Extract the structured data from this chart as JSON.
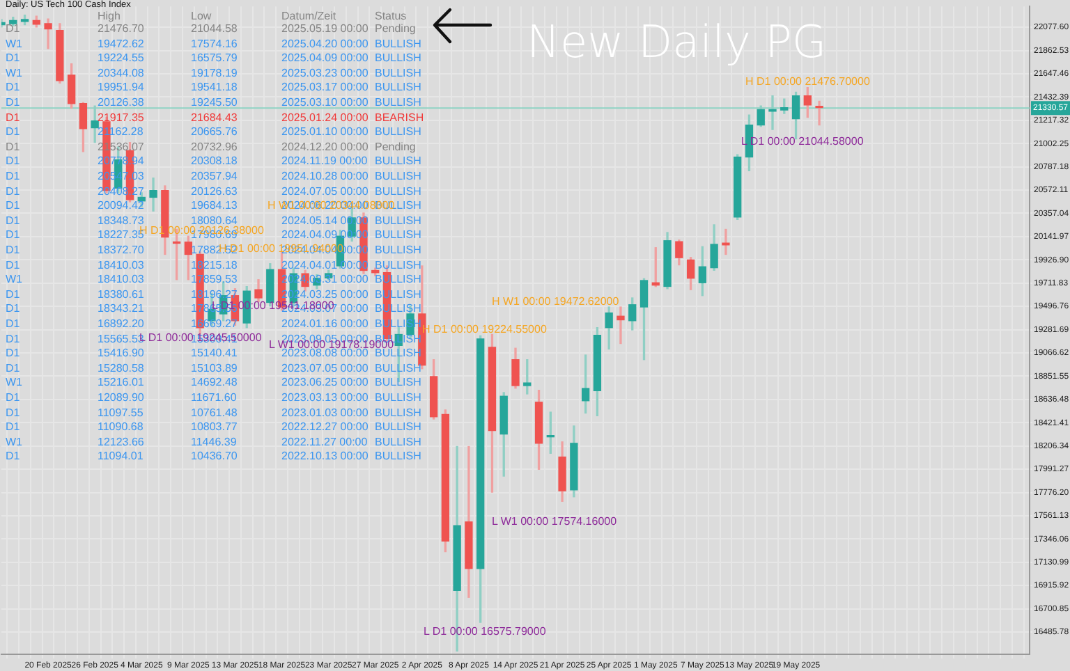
{
  "chart_data": {
    "type": "candlestick",
    "title": "Daily: US Tech 100 Cash Index",
    "categories": [
      null,
      null,
      null,
      null,
      "20 Feb 2025",
      null,
      null,
      null,
      "26 Feb 2025",
      null,
      null,
      null,
      "4 Mar 2025",
      null,
      null,
      null,
      "9 Mar 2025",
      null,
      null,
      null,
      "13 Mar 2025",
      null,
      null,
      null,
      "18 Mar 2025",
      null,
      null,
      null,
      "23 Mar 2025",
      null,
      null,
      null,
      "27 Mar 2025",
      null,
      null,
      null,
      "2 Apr 2025",
      null,
      null,
      null,
      "8 Apr 2025",
      null,
      null,
      null,
      "14 Apr 2025",
      null,
      null,
      null,
      "21 Apr 2025",
      null,
      null,
      null,
      "25 Apr 2025",
      null,
      null,
      null,
      "1 May 2025",
      null,
      null,
      null,
      "7 May 2025",
      null,
      null,
      null,
      "13 May 2025",
      null,
      null,
      null,
      "19 May 2025",
      null,
      null,
      null,
      null,
      null,
      null,
      null,
      null,
      null,
      null,
      null,
      null,
      null,
      null,
      null,
      null,
      null,
      null,
      null,
      null
    ],
    "ohlc": [
      [
        22100,
        22150,
        22080,
        22120
      ],
      [
        22110,
        22170,
        22090,
        22140
      ],
      [
        22130,
        22190,
        22100,
        22150
      ],
      [
        22140,
        22180,
        22080,
        22105
      ],
      [
        22111,
        22154,
        21879,
        22061
      ],
      [
        22048,
        22111,
        21562,
        21583
      ],
      [
        21634,
        21739,
        21329,
        21372
      ],
      [
        21372,
        21380,
        20928,
        21139
      ],
      [
        21148,
        21350,
        21012,
        21211
      ],
      [
        21203,
        21245,
        20547,
        20568
      ],
      [
        20590,
        20970,
        20547,
        20852
      ],
      [
        20936,
        21012,
        20463,
        20484
      ],
      [
        20471,
        20547,
        20421,
        20505
      ],
      [
        20505,
        20683,
        20378,
        20568
      ],
      [
        20568,
        20611,
        19977,
        20137
      ],
      [
        20091,
        20209,
        19744,
        20080
      ],
      [
        20091,
        20146,
        19744,
        19977
      ],
      [
        19977,
        20000,
        19245.5,
        19300
      ],
      [
        19364,
        19617,
        19322,
        19469
      ],
      [
        19427,
        19723,
        19364,
        19596
      ],
      [
        19596,
        19660,
        19322,
        19364
      ],
      [
        19343,
        19680,
        19300,
        19638
      ],
      [
        19651,
        19744,
        19541.18,
        19575
      ],
      [
        19533,
        19892,
        19500,
        19837
      ],
      [
        19837,
        19998,
        19460,
        19491
      ],
      [
        19533,
        19850,
        19500,
        19799
      ],
      [
        19799,
        19830,
        19640,
        19681
      ],
      [
        19693,
        19790,
        19660,
        19757
      ],
      [
        19760,
        19830,
        19740,
        19800
      ],
      [
        19871,
        20200,
        19850,
        20146
      ],
      [
        20146,
        20420,
        20100,
        20315
      ],
      [
        20315,
        20360,
        19800,
        19829
      ],
      [
        19829,
        19850,
        19780,
        19808
      ],
      [
        19808,
        19871,
        19180,
        19199
      ],
      [
        19135,
        19300,
        18800,
        19237
      ],
      [
        19237,
        19500,
        19200,
        19427
      ],
      [
        19427,
        19871,
        18920,
        18953
      ],
      [
        18848,
        19004,
        18455,
        18476
      ],
      [
        18497,
        18539,
        17229,
        17326
      ],
      [
        16870,
        18201,
        16310,
        17470
      ],
      [
        17504,
        18201,
        16806,
        17073
      ],
      [
        17073,
        19224.55,
        16575.79,
        19195
      ],
      [
        19119,
        19237,
        17779,
        18349
      ],
      [
        18316,
        18700,
        17927,
        18666
      ],
      [
        19004,
        19110,
        18740,
        18764
      ],
      [
        18764,
        19004,
        18687,
        18789
      ],
      [
        18611,
        18721,
        17990,
        18231
      ],
      [
        18290,
        18519,
        18138,
        18300
      ],
      [
        18104,
        18244,
        17694,
        17791
      ],
      [
        17800,
        18391,
        17736,
        18231
      ],
      [
        18624,
        19047,
        18510,
        18738
      ],
      [
        18717,
        19300,
        18485,
        19229
      ],
      [
        19300,
        19491,
        19102,
        19436
      ],
      [
        19406,
        19491,
        19153,
        19372
      ],
      [
        19364,
        19575,
        19279,
        19512
      ],
      [
        19491,
        19753,
        19004,
        19736
      ],
      [
        19715,
        20040,
        19680,
        19693
      ],
      [
        19681,
        20180,
        19660,
        20104
      ],
      [
        20095,
        20110,
        19880,
        19947
      ],
      [
        19926,
        19950,
        19651,
        19757
      ],
      [
        19715,
        20049,
        19596,
        19863
      ],
      [
        19854,
        20251,
        19830,
        20070
      ],
      [
        20082,
        20209,
        19977,
        20065
      ],
      [
        20323,
        20900,
        20300,
        20877
      ],
      [
        20877,
        21266,
        20750,
        21173
      ],
      [
        21173,
        21350,
        21160,
        21317
      ],
      [
        21300,
        21444,
        21131,
        21317
      ],
      [
        21312,
        21414,
        21280,
        21334
      ],
      [
        21232,
        21476.7,
        21044.58,
        21444
      ],
      [
        21444,
        21520,
        21245,
        21359
      ],
      [
        21342,
        21393,
        21173,
        21334
      ],
      null,
      null,
      null,
      null,
      null,
      null,
      null,
      null,
      null,
      null,
      null,
      null,
      null,
      null,
      null,
      null,
      null,
      null
    ],
    "ylim": [
      16280,
      22270
    ],
    "yticks": [
      16485.78,
      16700.85,
      16915.92,
      17130.99,
      17346.06,
      17561.13,
      {
        "value": 17776.2,
        "label": "17776.20"
      },
      17991.27,
      18206.34,
      18421.41,
      18636.48,
      18851.55,
      19066.62,
      19281.69,
      19496.76,
      19711.83,
      {
        "value": 19926.9,
        "label": "19926.90"
      },
      20141.97,
      20357.04,
      20572.11,
      20787.18,
      21002.25,
      21217.32,
      21432.39,
      21647.46,
      21862.53,
      {
        "value": 22077.6,
        "label": "22077.60"
      }
    ],
    "ref_lines": [
      {
        "axis": "y",
        "value": 21330.57,
        "label": "21330.57",
        "color": "#8fd3c4"
      }
    ],
    "grid": true,
    "annotations": [
      "New Daily PG",
      "High",
      "Low",
      "Datum/Zeit",
      "Status",
      "D1",
      "21476.70",
      "21044.58",
      "2025.05.19 00:00",
      "Pending",
      "W1",
      "19472.62",
      "17574.16",
      "2025.04.20 00:00",
      "BULLISH",
      "D1",
      "19224.55",
      "16575.79",
      "2025.04.09 00:00",
      "BULLISH",
      "W1",
      "20344.08",
      "19178.19",
      "2025.03.23 00:00",
      "BULLISH",
      "D1",
      "19951.94",
      "19541.18",
      "2025.03.17 00:00",
      "BULLISH",
      "D1",
      "20126.38",
      "19245.50",
      "2025.03.10 00:00",
      "BULLISH",
      "D1",
      "21917.35",
      "21684.43",
      "2025.01.24 00:00",
      "BEARISH",
      "D1",
      "21162.28",
      "20665.76",
      "2025.01.10 00:00",
      "BULLISH",
      "D1",
      "21536.07",
      "20732.96",
      "2024.12.20 00:00",
      "Pending",
      "D1",
      "20778.94",
      "20308.18",
      "2024.11.19 00:00",
      "BULLISH",
      "D1",
      "20547.03",
      "20357.94",
      "2024.10.28 00:00",
      "BULLISH",
      "D1",
      "20408.27",
      "20126.63",
      "2024.07.05 00:00",
      "BULLISH",
      "D1",
      "20094.42",
      "19684.13",
      "2024.06.20 00:00",
      "BULLISH",
      "D1",
      "18348.73",
      "18080.64",
      "2024.05.14 00:00",
      "BULLISH",
      "D1",
      "18227.35",
      "17980.69",
      "2024.04.09 00:00",
      "BULLISH",
      "D1",
      "18372.70",
      "17882.52",
      "2024.04.04 00:00",
      "BULLISH",
      "D1",
      "18410.03",
      "18215.18",
      "2024.04.01 00:00",
      "BULLISH",
      "W1",
      "18410.03",
      "17859.53",
      "2024.03.31 00:00",
      "BULLISH",
      "D1",
      "18380.61",
      "18196.27",
      "2024.03.25 00:00",
      "BULLISH",
      "D1",
      "18343.21",
      "17865.56",
      "2024.03.07 00:00",
      "BULLISH",
      "D1",
      "16892.20",
      "16669.27",
      "2024.01.16 00:00",
      "BULLISH",
      "D1",
      "15565.53",
      "15300.41",
      "2023.09.05 00:00",
      "BULLISH",
      "D1",
      "15416.90",
      "15140.41",
      "2023.08.08 00:00",
      "BULLISH",
      "D1",
      "15280.58",
      "15103.89",
      "2023.07.05 00:00",
      "BULLISH",
      "W1",
      "15216.01",
      "14692.48",
      "2023.06.25 00:00",
      "BULLISH",
      "D1",
      "12089.90",
      "11671.60",
      "2023.03.13 00:00",
      "BULLISH",
      "D1",
      "11097.55",
      "10761.48",
      "2023.01.03 00:00",
      "BULLISH",
      "D1",
      "11090.68",
      "10803.77",
      "2022.12.27 00:00",
      "BULLISH",
      "W1",
      "12123.66",
      "11446.39",
      "2022.11.27 00:00",
      "BULLISH",
      "D1",
      "11094.01",
      "10436.70",
      "2022.10.13 00:00",
      "BULLISH",
      "H D1 00:00 21476.70000",
      "L D1 00:00 21044.58000",
      "H W1 00:00 19472.62000",
      "H D1 00:00 19224.55000",
      "L W1 00:00 17574.16000",
      "L D1 00:00 16575.79000",
      "H D1 00:00 20126.38000",
      "H W1 00:00 20344.08000",
      "H D1 00:00 19951.94000",
      "L D1 00:00 19541.18000",
      "L D1 00:00 19245.50000",
      "L W1 00:00 19178.19000"
    ]
  }
}
